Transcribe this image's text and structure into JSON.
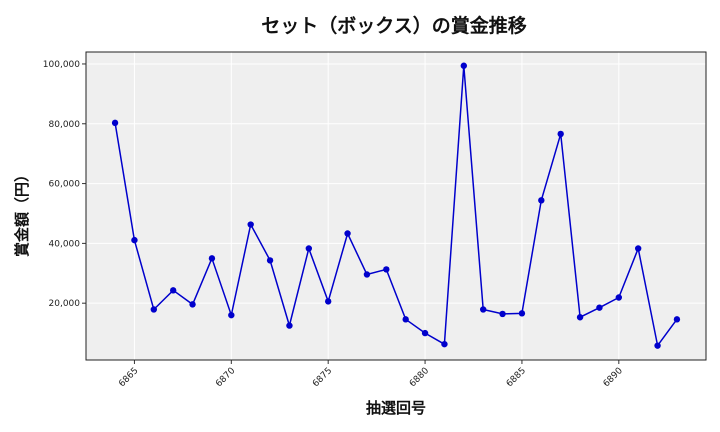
{
  "chart_data": {
    "type": "line",
    "title": "セット（ボックス）の賞金推移",
    "xlabel": "抽選回号",
    "ylabel": "賞金額（円）",
    "xlim": [
      6862.5,
      6894.5
    ],
    "ylim": [
      1000,
      104000
    ],
    "x_ticks": [
      6865,
      6870,
      6875,
      6880,
      6885,
      6890
    ],
    "x_tick_labels": [
      "6865",
      "6870",
      "6875",
      "6880",
      "6885",
      "6890"
    ],
    "y_ticks": [
      20000,
      40000,
      60000,
      80000,
      100000
    ],
    "y_tick_labels": [
      "20,000",
      "40,000",
      "60,000",
      "80,000",
      "100,000"
    ],
    "grid": true,
    "background_color": "#efefef",
    "line_color": "#0000cc",
    "marker_color": "#0000cc",
    "series": [
      {
        "x": [
          6864,
          6865,
          6866,
          6867,
          6868,
          6869,
          6870,
          6871,
          6872,
          6873,
          6874,
          6875,
          6876,
          6877,
          6878,
          6879,
          6880,
          6881,
          6882,
          6883,
          6884,
          6885,
          6886,
          6887,
          6888,
          6889,
          6890,
          6891,
          6892,
          6893
        ],
        "values": [
          80300,
          41100,
          17900,
          24300,
          19600,
          35000,
          16000,
          46300,
          34300,
          12500,
          38300,
          20600,
          43300,
          29600,
          31300,
          14600,
          10000,
          6300,
          99400,
          17900,
          16400,
          16600,
          54400,
          76600,
          15300,
          18500,
          21900,
          38300,
          5800,
          14600
        ]
      }
    ]
  }
}
